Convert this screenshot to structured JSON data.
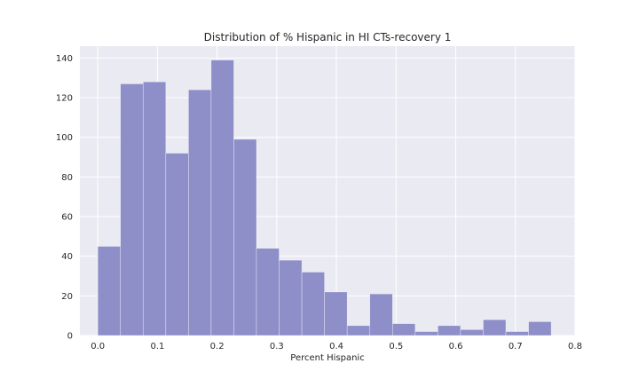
{
  "chart_data": {
    "type": "bar",
    "title": "Distribution of % Hispanic in HI CTs-recovery 1",
    "xlabel": "Percent Hispanic",
    "ylabel": "",
    "xlim": [
      -0.03,
      0.8
    ],
    "ylim": [
      0,
      146
    ],
    "xticks": [
      0.0,
      0.1,
      0.2,
      0.3,
      0.4,
      0.5,
      0.6,
      0.7,
      0.8
    ],
    "xtick_labels": [
      "0.0",
      "0.1",
      "0.2",
      "0.3",
      "0.4",
      "0.5",
      "0.6",
      "0.7",
      "0.8"
    ],
    "yticks": [
      0,
      20,
      40,
      60,
      80,
      100,
      120,
      140
    ],
    "ytick_labels": [
      "0",
      "20",
      "40",
      "60",
      "80",
      "100",
      "120",
      "140"
    ],
    "grid": true,
    "bar_color": "#8e8ec9",
    "background_color": "#eaeaf2",
    "bins": [
      {
        "x0": 0.0,
        "x1": 0.038,
        "count": 45
      },
      {
        "x0": 0.038,
        "x1": 0.076,
        "count": 127
      },
      {
        "x0": 0.076,
        "x1": 0.114,
        "count": 128
      },
      {
        "x0": 0.114,
        "x1": 0.152,
        "count": 92
      },
      {
        "x0": 0.152,
        "x1": 0.19,
        "count": 124
      },
      {
        "x0": 0.19,
        "x1": 0.228,
        "count": 139
      },
      {
        "x0": 0.228,
        "x1": 0.266,
        "count": 99
      },
      {
        "x0": 0.266,
        "x1": 0.304,
        "count": 44
      },
      {
        "x0": 0.304,
        "x1": 0.342,
        "count": 38
      },
      {
        "x0": 0.342,
        "x1": 0.38,
        "count": 32
      },
      {
        "x0": 0.38,
        "x1": 0.418,
        "count": 22
      },
      {
        "x0": 0.418,
        "x1": 0.456,
        "count": 5
      },
      {
        "x0": 0.456,
        "x1": 0.494,
        "count": 21
      },
      {
        "x0": 0.494,
        "x1": 0.532,
        "count": 6
      },
      {
        "x0": 0.532,
        "x1": 0.57,
        "count": 2
      },
      {
        "x0": 0.57,
        "x1": 0.608,
        "count": 5
      },
      {
        "x0": 0.608,
        "x1": 0.646,
        "count": 3
      },
      {
        "x0": 0.646,
        "x1": 0.684,
        "count": 8
      },
      {
        "x0": 0.684,
        "x1": 0.722,
        "count": 2
      },
      {
        "x0": 0.722,
        "x1": 0.76,
        "count": 7
      }
    ]
  }
}
